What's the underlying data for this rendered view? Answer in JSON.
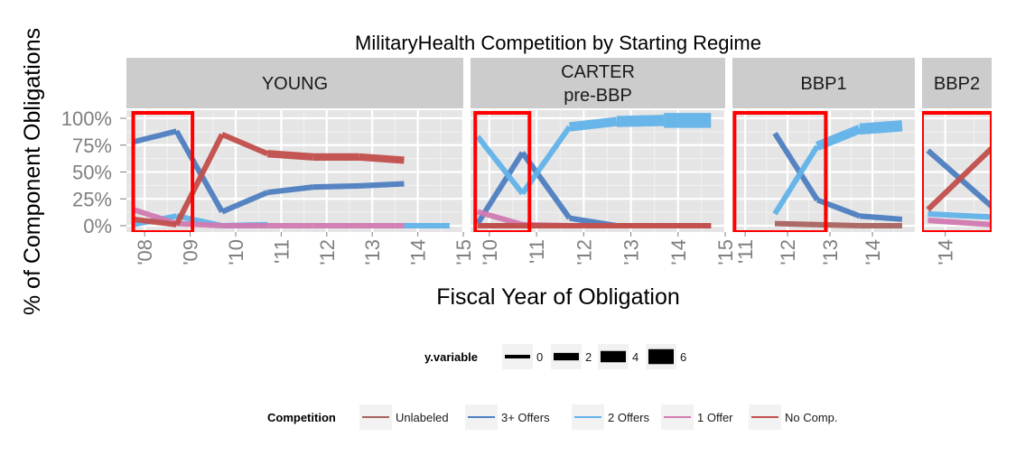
{
  "chart_data": {
    "type": "line",
    "title": "MilitaryHealth Competition by Starting Regime",
    "xlabel": "Fiscal Year of Obligation",
    "ylabel": "% of Component Obligations",
    "ylim": [
      0,
      1
    ],
    "y_ticks": [
      "0%",
      "25%",
      "50%",
      "75%",
      "100%"
    ],
    "grid": true,
    "colors": {
      "Unlabeled": "#a8645f",
      "3+ Offers": "#4f7fc1",
      "2 Offers": "#62b3ea",
      "1 Offer": "#d27ab1",
      "No Comp.": "#c24f4c",
      "highlight": "#ff0000",
      "strip": "#cccccc",
      "panel": "#e5e5e5"
    },
    "panels": [
      {
        "label": "YOUNG",
        "xlim": [
          2007.6,
          2015.0
        ],
        "x_ticks": [
          {
            "x": 2008,
            "label": "'08"
          },
          {
            "x": 2009,
            "label": "'09"
          },
          {
            "x": 2010,
            "label": "'10"
          },
          {
            "x": 2011,
            "label": "'11"
          },
          {
            "x": 2012,
            "label": "'12"
          },
          {
            "x": 2013,
            "label": "'13"
          },
          {
            "x": 2014,
            "label": "'14"
          },
          {
            "x": 2015,
            "label": "'15"
          }
        ],
        "highlight_x": [
          2007.75,
          2009.05
        ],
        "series": [
          {
            "name": "3+ Offers",
            "points": [
              {
                "x": 2007.75,
                "y": 0.78,
                "size": 1
              },
              {
                "x": 2008.7,
                "y": 0.88,
                "size": 1
              },
              {
                "x": 2009.7,
                "y": 0.13,
                "size": 1
              },
              {
                "x": 2010.7,
                "y": 0.31,
                "size": 1
              },
              {
                "x": 2011.7,
                "y": 0.36,
                "size": 1
              },
              {
                "x": 2012.7,
                "y": 0.37,
                "size": 1
              },
              {
                "x": 2013.7,
                "y": 0.39,
                "size": 1
              }
            ]
          },
          {
            "name": "2 Offers",
            "points": [
              {
                "x": 2007.75,
                "y": 0.01,
                "size": 1
              },
              {
                "x": 2008.7,
                "y": 0.09,
                "size": 1
              },
              {
                "x": 2009.7,
                "y": 0.0,
                "size": 1
              },
              {
                "x": 2010.7,
                "y": 0.01,
                "size": 1
              }
            ]
          },
          {
            "name": "2 Offers",
            "points": [
              {
                "x": 2013.7,
                "y": 0.0,
                "size": 1
              },
              {
                "x": 2014.7,
                "y": 0.0,
                "size": 1
              }
            ]
          },
          {
            "name": "1 Offer",
            "points": [
              {
                "x": 2007.75,
                "y": 0.15,
                "size": 1
              },
              {
                "x": 2008.7,
                "y": 0.02,
                "size": 1
              },
              {
                "x": 2009.7,
                "y": 0.0,
                "size": 1
              },
              {
                "x": 2010.7,
                "y": 0.0,
                "size": 1
              },
              {
                "x": 2011.7,
                "y": 0.0,
                "size": 1
              },
              {
                "x": 2012.7,
                "y": 0.0,
                "size": 1
              },
              {
                "x": 2013.7,
                "y": 0.0,
                "size": 1
              }
            ]
          },
          {
            "name": "No Comp.",
            "points": [
              {
                "x": 2007.75,
                "y": 0.06,
                "size": 1
              },
              {
                "x": 2008.7,
                "y": 0.01,
                "size": 1
              },
              {
                "x": 2009.7,
                "y": 0.85,
                "size": 1
              },
              {
                "x": 2010.7,
                "y": 0.67,
                "size": 2
              },
              {
                "x": 2011.7,
                "y": 0.64,
                "size": 2
              },
              {
                "x": 2012.7,
                "y": 0.64,
                "size": 2
              },
              {
                "x": 2013.7,
                "y": 0.61,
                "size": 2
              }
            ]
          }
        ]
      },
      {
        "label": "CARTER\npre-BBP",
        "xlim": [
          2009.6,
          2015.0
        ],
        "x_ticks": [
          {
            "x": 2010,
            "label": "'10"
          },
          {
            "x": 2011,
            "label": "'11"
          },
          {
            "x": 2012,
            "label": "'12"
          },
          {
            "x": 2013,
            "label": "'13"
          },
          {
            "x": 2014,
            "label": "'14"
          },
          {
            "x": 2015,
            "label": "'15"
          }
        ],
        "highlight_x": [
          2009.7,
          2010.85
        ],
        "series": [
          {
            "name": "Unlabeled",
            "points": [
              {
                "x": 2009.75,
                "y": 0.0,
                "size": 1
              },
              {
                "x": 2010.7,
                "y": 0.0,
                "size": 1
              },
              {
                "x": 2011.7,
                "y": 0.0,
                "size": 1
              },
              {
                "x": 2012.7,
                "y": 0.0,
                "size": 1
              },
              {
                "x": 2013.7,
                "y": 0.0,
                "size": 1
              },
              {
                "x": 2014.7,
                "y": 0.0,
                "size": 1
              }
            ]
          },
          {
            "name": "3+ Offers",
            "points": [
              {
                "x": 2009.75,
                "y": 0.02,
                "size": 1
              },
              {
                "x": 2010.7,
                "y": 0.68,
                "size": 1
              },
              {
                "x": 2011.7,
                "y": 0.07,
                "size": 1
              },
              {
                "x": 2012.7,
                "y": 0.0,
                "size": 1
              }
            ]
          },
          {
            "name": "2 Offers",
            "points": [
              {
                "x": 2009.75,
                "y": 0.83,
                "size": 1
              },
              {
                "x": 2010.7,
                "y": 0.3,
                "size": 1
              },
              {
                "x": 2011.7,
                "y": 0.92,
                "size": 3
              },
              {
                "x": 2012.7,
                "y": 0.97,
                "size": 4
              },
              {
                "x": 2013.7,
                "y": 0.98,
                "size": 6
              },
              {
                "x": 2014.7,
                "y": 0.98,
                "size": 6
              }
            ]
          },
          {
            "name": "1 Offer",
            "points": [
              {
                "x": 2009.75,
                "y": 0.13,
                "size": 1
              },
              {
                "x": 2010.7,
                "y": 0.01,
                "size": 1
              },
              {
                "x": 2011.7,
                "y": 0.0,
                "size": 1
              },
              {
                "x": 2012.7,
                "y": 0.0,
                "size": 1
              },
              {
                "x": 2013.7,
                "y": 0.0,
                "size": 1
              },
              {
                "x": 2014.7,
                "y": 0.0,
                "size": 1
              }
            ]
          },
          {
            "name": "No Comp.",
            "points": [
              {
                "x": 2009.75,
                "y": 0.0,
                "size": 1
              },
              {
                "x": 2010.7,
                "y": 0.0,
                "size": 1
              },
              {
                "x": 2011.7,
                "y": 0.0,
                "size": 1
              },
              {
                "x": 2012.7,
                "y": 0.0,
                "size": 1
              },
              {
                "x": 2013.7,
                "y": 0.0,
                "size": 1
              },
              {
                "x": 2014.7,
                "y": 0.0,
                "size": 1
              }
            ]
          }
        ]
      },
      {
        "label": "BBP1",
        "xlim": [
          2010.7,
          2015.0
        ],
        "x_ticks": [
          {
            "x": 2011,
            "label": "'11"
          },
          {
            "x": 2012,
            "label": "'12"
          },
          {
            "x": 2013,
            "label": "'13"
          },
          {
            "x": 2014,
            "label": "'14"
          }
        ],
        "highlight_x": [
          2010.75,
          2012.9
        ],
        "series": [
          {
            "name": "Unlabeled",
            "points": [
              {
                "x": 2011.7,
                "y": 0.02,
                "size": 1
              },
              {
                "x": 2012.7,
                "y": 0.01,
                "size": 1
              },
              {
                "x": 2013.7,
                "y": 0.0,
                "size": 1
              },
              {
                "x": 2014.7,
                "y": 0.0,
                "size": 1
              }
            ]
          },
          {
            "name": "3+ Offers",
            "points": [
              {
                "x": 2011.7,
                "y": 0.86,
                "size": 1
              },
              {
                "x": 2012.7,
                "y": 0.24,
                "size": 1
              },
              {
                "x": 2013.7,
                "y": 0.09,
                "size": 1
              },
              {
                "x": 2014.7,
                "y": 0.06,
                "size": 1
              }
            ]
          },
          {
            "name": "2 Offers",
            "points": [
              {
                "x": 2011.7,
                "y": 0.11,
                "size": 1
              },
              {
                "x": 2012.7,
                "y": 0.74,
                "size": 3
              },
              {
                "x": 2013.7,
                "y": 0.9,
                "size": 4
              },
              {
                "x": 2014.7,
                "y": 0.93,
                "size": 5
              }
            ]
          }
        ]
      },
      {
        "label": "BBP2",
        "xlim": [
          2013.6,
          2014.8
        ],
        "x_ticks": [
          {
            "x": 2014,
            "label": "'14"
          }
        ],
        "highlight_x": [
          2013.6,
          2014.8
        ],
        "series": [
          {
            "name": "3+ Offers",
            "points": [
              {
                "x": 2013.7,
                "y": 0.7,
                "size": 1
              },
              {
                "x": 2014.8,
                "y": 0.18,
                "size": 1
              }
            ]
          },
          {
            "name": "2 Offers",
            "points": [
              {
                "x": 2013.7,
                "y": 0.11,
                "size": 1
              },
              {
                "x": 2014.8,
                "y": 0.08,
                "size": 1
              }
            ]
          },
          {
            "name": "1 Offer",
            "points": [
              {
                "x": 2013.7,
                "y": 0.05,
                "size": 1
              },
              {
                "x": 2014.8,
                "y": 0.01,
                "size": 1
              }
            ]
          },
          {
            "name": "No Comp.",
            "points": [
              {
                "x": 2013.7,
                "y": 0.15,
                "size": 1
              },
              {
                "x": 2014.8,
                "y": 0.72,
                "size": 1
              }
            ]
          }
        ]
      }
    ],
    "legends": {
      "size": {
        "title": "y.variable",
        "items": [
          {
            "label": "0",
            "size": 0
          },
          {
            "label": "2",
            "size": 2
          },
          {
            "label": "4",
            "size": 4
          },
          {
            "label": "6",
            "size": 6
          }
        ]
      },
      "color": {
        "title": "Competition",
        "items": [
          "Unlabeled",
          "3+ Offers",
          "2 Offers",
          "1 Offer",
          "No Comp."
        ]
      },
      "placement": "bottom"
    }
  }
}
